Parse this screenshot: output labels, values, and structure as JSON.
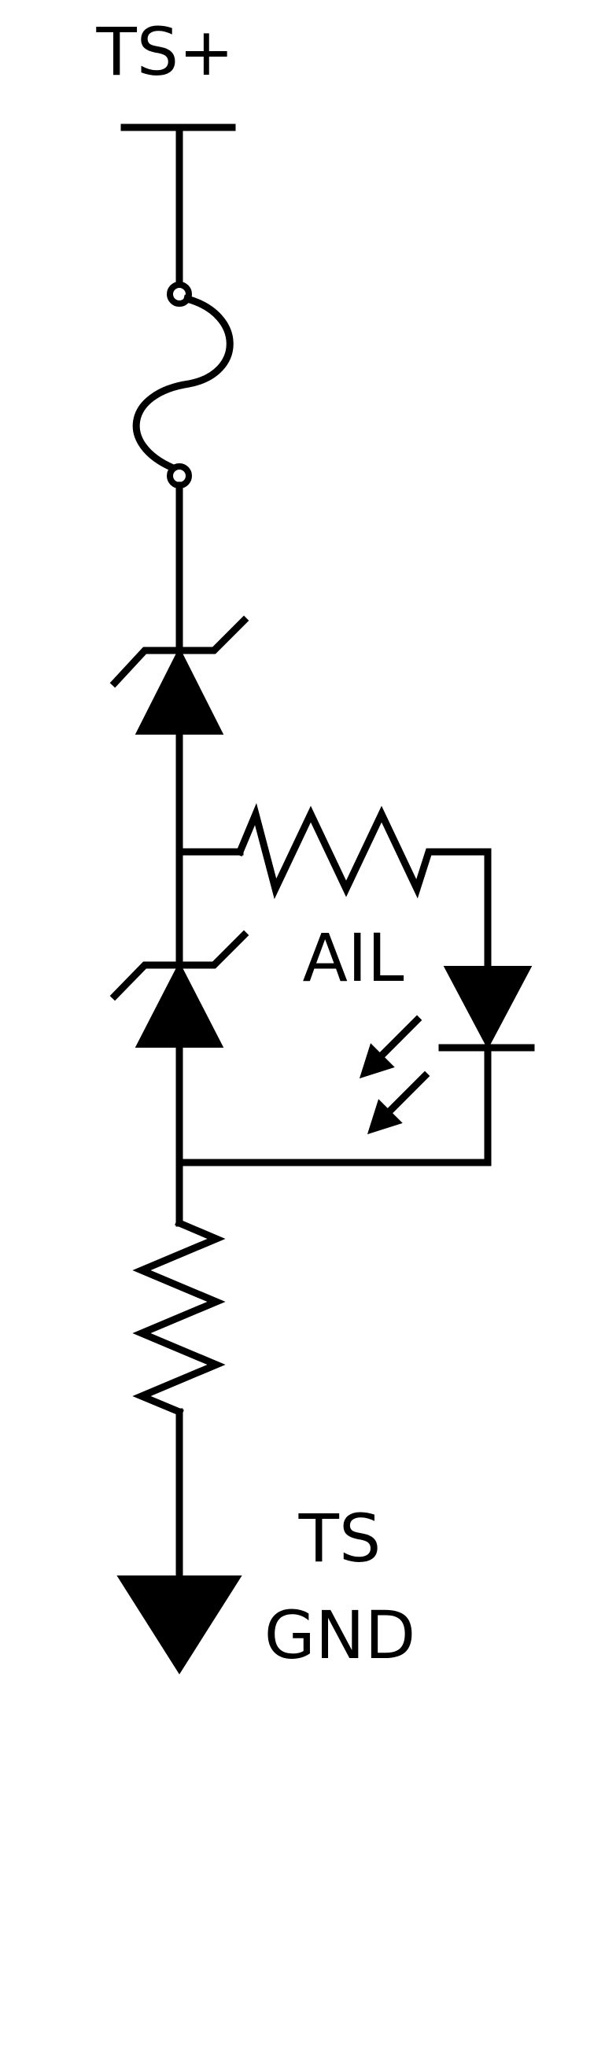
{
  "labels": {
    "supply": "TS+",
    "led": "AIL",
    "ground_line1": "TS",
    "ground_line2": "GND"
  },
  "components": [
    {
      "name": "supply-rail-icon",
      "kind": "terminal"
    },
    {
      "name": "fuse-icon",
      "kind": "fuse"
    },
    {
      "name": "tvs-diode-upper-icon",
      "kind": "zener-diode"
    },
    {
      "name": "tvs-diode-lower-icon",
      "kind": "zener-diode"
    },
    {
      "name": "led-series-resistor-icon",
      "kind": "resistor"
    },
    {
      "name": "led-icon",
      "kind": "light-emitting-diode"
    },
    {
      "name": "bleeder-resistor-icon",
      "kind": "resistor"
    },
    {
      "name": "ground-icon",
      "kind": "ground"
    }
  ],
  "colors": {
    "stroke": "#000000",
    "background": "#ffffff"
  }
}
